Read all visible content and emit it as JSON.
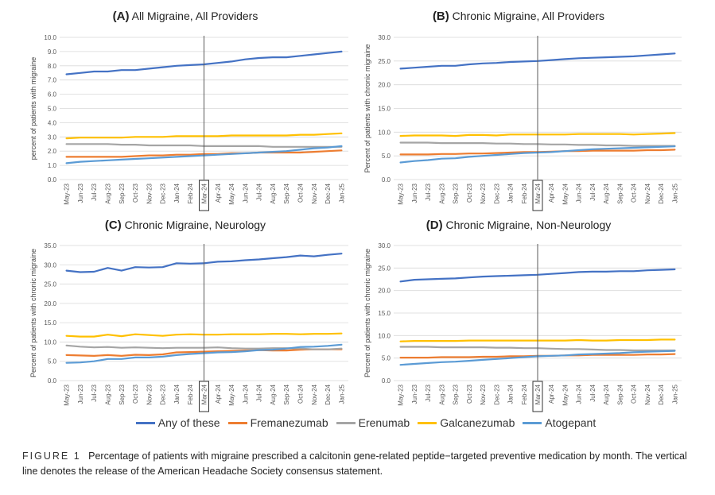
{
  "months": [
    "May-23",
    "Jun-23",
    "Jul-23",
    "Aug-23",
    "Sep-23",
    "Oct-23",
    "Nov-23",
    "Dec-23",
    "Jan-24",
    "Feb-24",
    "Mar-24",
    "Apr-24",
    "May-24",
    "Jun-24",
    "Jul-24",
    "Aug-24",
    "Sep-24",
    "Oct-24",
    "Nov-24",
    "Dec-24",
    "Jan-25"
  ],
  "highlight_month": "Mar-24",
  "colors": {
    "Any of these": "#4472C4",
    "Fremanezumab": "#ED7D31",
    "Erenumab": "#A5A5A5",
    "Galcanezumab": "#FFC000",
    "Atogepant": "#5B9BD5",
    "grid": "#D9D9D9",
    "axis_text": "#595959",
    "vline": "#595959"
  },
  "legend": [
    {
      "name": "Any of these",
      "color_key": "Any of these"
    },
    {
      "name": "Fremanezumab",
      "color_key": "Fremanezumab"
    },
    {
      "name": "Erenumab",
      "color_key": "Erenumab"
    },
    {
      "name": "Galcanezumab",
      "color_key": "Galcanezumab"
    },
    {
      "name": "Atogepant",
      "color_key": "Atogepant"
    }
  ],
  "caption": {
    "label": "FIGURE 1",
    "text": "Percentage of patients with migraine prescribed a calcitonin gene-related peptide−targeted preventive medication by month. The vertical line denotes the release of the American Headache Society consensus statement."
  },
  "chart_data": [
    {
      "type": "line",
      "panel_letter": "(A)",
      "title": "All Migraine, All Providers",
      "ylabel": "percent of patients with migraine",
      "ylim": [
        0,
        10
      ],
      "yticks": [
        "0.0",
        "1.0",
        "2.0",
        "3.0",
        "4.0",
        "5.0",
        "6.0",
        "7.0",
        "8.0",
        "9.0",
        "10.0"
      ],
      "series": [
        {
          "name": "Any of these",
          "values": [
            7.4,
            7.5,
            7.6,
            7.6,
            7.7,
            7.7,
            7.8,
            7.9,
            8.0,
            8.05,
            8.1,
            8.2,
            8.3,
            8.45,
            8.55,
            8.6,
            8.6,
            8.7,
            8.8,
            8.9,
            9.0
          ]
        },
        {
          "name": "Fremanezumab",
          "values": [
            1.6,
            1.6,
            1.6,
            1.6,
            1.6,
            1.65,
            1.7,
            1.7,
            1.75,
            1.75,
            1.8,
            1.8,
            1.85,
            1.85,
            1.9,
            1.9,
            1.9,
            1.9,
            1.95,
            2.0,
            2.05
          ]
        },
        {
          "name": "Erenumab",
          "values": [
            2.5,
            2.5,
            2.5,
            2.5,
            2.45,
            2.45,
            2.4,
            2.4,
            2.4,
            2.4,
            2.35,
            2.35,
            2.35,
            2.35,
            2.35,
            2.3,
            2.3,
            2.3,
            2.3,
            2.3,
            2.3
          ]
        },
        {
          "name": "Galcanezumab",
          "values": [
            2.9,
            2.95,
            2.95,
            2.95,
            2.95,
            3.0,
            3.0,
            3.0,
            3.05,
            3.05,
            3.05,
            3.05,
            3.1,
            3.1,
            3.1,
            3.1,
            3.1,
            3.15,
            3.15,
            3.2,
            3.25
          ]
        },
        {
          "name": "Atogepant",
          "values": [
            1.15,
            1.25,
            1.3,
            1.35,
            1.4,
            1.45,
            1.5,
            1.55,
            1.6,
            1.65,
            1.7,
            1.75,
            1.8,
            1.85,
            1.9,
            1.95,
            2.0,
            2.1,
            2.2,
            2.25,
            2.35
          ]
        }
      ]
    },
    {
      "type": "line",
      "panel_letter": "(B)",
      "title": "Chronic Migraine, All Providers",
      "ylabel": "Percent of patients with chronic migraine",
      "ylim": [
        0,
        30
      ],
      "yticks": [
        "0.0",
        "5.0",
        "10.0",
        "15.0",
        "20.0",
        "25.0",
        "30.0"
      ],
      "series": [
        {
          "name": "Any of these",
          "values": [
            23.4,
            23.6,
            23.8,
            24.0,
            24.0,
            24.3,
            24.5,
            24.6,
            24.8,
            24.9,
            25.0,
            25.2,
            25.4,
            25.6,
            25.7,
            25.8,
            25.9,
            26.0,
            26.2,
            26.4,
            26.6
          ]
        },
        {
          "name": "Fremanezumab",
          "values": [
            5.3,
            5.3,
            5.3,
            5.4,
            5.4,
            5.5,
            5.5,
            5.6,
            5.7,
            5.8,
            5.8,
            5.9,
            6.0,
            6.0,
            6.1,
            6.1,
            6.1,
            6.1,
            6.2,
            6.2,
            6.3
          ]
        },
        {
          "name": "Erenumab",
          "values": [
            7.8,
            7.8,
            7.8,
            7.7,
            7.7,
            7.7,
            7.7,
            7.6,
            7.6,
            7.5,
            7.5,
            7.4,
            7.4,
            7.3,
            7.3,
            7.2,
            7.2,
            7.1,
            7.1,
            7.1,
            7.1
          ]
        },
        {
          "name": "Galcanezumab",
          "values": [
            9.2,
            9.3,
            9.3,
            9.3,
            9.2,
            9.4,
            9.4,
            9.3,
            9.5,
            9.5,
            9.5,
            9.5,
            9.5,
            9.6,
            9.6,
            9.6,
            9.6,
            9.5,
            9.6,
            9.7,
            9.8
          ]
        },
        {
          "name": "Atogepant",
          "values": [
            3.6,
            3.9,
            4.1,
            4.4,
            4.5,
            4.8,
            5.0,
            5.2,
            5.4,
            5.6,
            5.7,
            5.8,
            6.0,
            6.2,
            6.4,
            6.5,
            6.6,
            6.7,
            6.8,
            6.9,
            7.0
          ]
        }
      ]
    },
    {
      "type": "line",
      "panel_letter": "(C)",
      "title": "Chronic Migraine, Neurology",
      "ylabel": "Percent of patients with chronic migraine",
      "ylim": [
        0,
        35
      ],
      "yticks": [
        "0.0",
        "5.0",
        "10.0",
        "15.0",
        "20.0",
        "25.0",
        "30.0",
        "35.0"
      ],
      "series": [
        {
          "name": "Any of these",
          "values": [
            28.5,
            28.1,
            28.2,
            29.2,
            28.5,
            29.4,
            29.3,
            29.4,
            30.4,
            30.3,
            30.4,
            30.8,
            30.9,
            31.2,
            31.4,
            31.7,
            32.0,
            32.4,
            32.2,
            32.6,
            32.9
          ]
        },
        {
          "name": "Fremanezumab",
          "values": [
            6.6,
            6.5,
            6.4,
            6.6,
            6.4,
            6.7,
            6.6,
            6.8,
            7.3,
            7.4,
            7.5,
            7.6,
            7.7,
            7.8,
            7.9,
            7.8,
            7.8,
            8.0,
            8.1,
            8.1,
            8.1
          ]
        },
        {
          "name": "Erenumab",
          "values": [
            9.1,
            8.8,
            8.6,
            8.7,
            8.5,
            8.6,
            8.5,
            8.4,
            8.5,
            8.5,
            8.5,
            8.6,
            8.4,
            8.3,
            8.3,
            8.4,
            8.4,
            8.3,
            8.1,
            8.1,
            8.3
          ]
        },
        {
          "name": "Galcanezumab",
          "values": [
            11.6,
            11.4,
            11.4,
            11.9,
            11.5,
            12.0,
            11.8,
            11.6,
            11.9,
            12.0,
            11.9,
            11.9,
            12.0,
            12.0,
            12.0,
            12.1,
            12.1,
            12.0,
            12.1,
            12.1,
            12.2
          ]
        },
        {
          "name": "Atogepant",
          "values": [
            4.6,
            4.7,
            5.0,
            5.6,
            5.6,
            6.0,
            6.0,
            6.2,
            6.6,
            6.9,
            7.1,
            7.3,
            7.4,
            7.6,
            7.9,
            8.0,
            8.3,
            8.7,
            8.8,
            9.0,
            9.3
          ]
        }
      ]
    },
    {
      "type": "line",
      "panel_letter": "(D)",
      "title": "Chronic Migraine, Non-Neurology",
      "ylabel": "Percent of patients with chronic migraine",
      "ylim": [
        0,
        30
      ],
      "yticks": [
        "0.0",
        "5.0",
        "10.0",
        "15.0",
        "20.0",
        "25.0",
        "30.0"
      ],
      "series": [
        {
          "name": "Any of these",
          "values": [
            22.0,
            22.4,
            22.5,
            22.6,
            22.7,
            22.9,
            23.1,
            23.2,
            23.3,
            23.4,
            23.5,
            23.7,
            23.9,
            24.1,
            24.2,
            24.2,
            24.3,
            24.3,
            24.5,
            24.6,
            24.7
          ]
        },
        {
          "name": "Fremanezumab",
          "values": [
            5.1,
            5.1,
            5.1,
            5.2,
            5.2,
            5.2,
            5.3,
            5.3,
            5.4,
            5.4,
            5.5,
            5.5,
            5.6,
            5.6,
            5.7,
            5.7,
            5.7,
            5.7,
            5.8,
            5.8,
            5.9
          ]
        },
        {
          "name": "Erenumab",
          "values": [
            7.5,
            7.5,
            7.5,
            7.4,
            7.4,
            7.4,
            7.4,
            7.3,
            7.3,
            7.2,
            7.2,
            7.1,
            7.0,
            7.0,
            6.9,
            6.8,
            6.8,
            6.7,
            6.7,
            6.7,
            6.7
          ]
        },
        {
          "name": "Galcanezumab",
          "values": [
            8.7,
            8.8,
            8.8,
            8.8,
            8.8,
            8.9,
            8.9,
            8.9,
            8.9,
            8.9,
            8.9,
            8.9,
            8.9,
            9.0,
            8.9,
            8.9,
            9.0,
            9.0,
            9.0,
            9.1,
            9.1
          ]
        },
        {
          "name": "Atogepant",
          "values": [
            3.5,
            3.7,
            3.9,
            4.1,
            4.2,
            4.4,
            4.6,
            4.8,
            5.0,
            5.2,
            5.4,
            5.5,
            5.6,
            5.8,
            5.9,
            6.0,
            6.1,
            6.3,
            6.4,
            6.5,
            6.6
          ]
        }
      ]
    }
  ]
}
